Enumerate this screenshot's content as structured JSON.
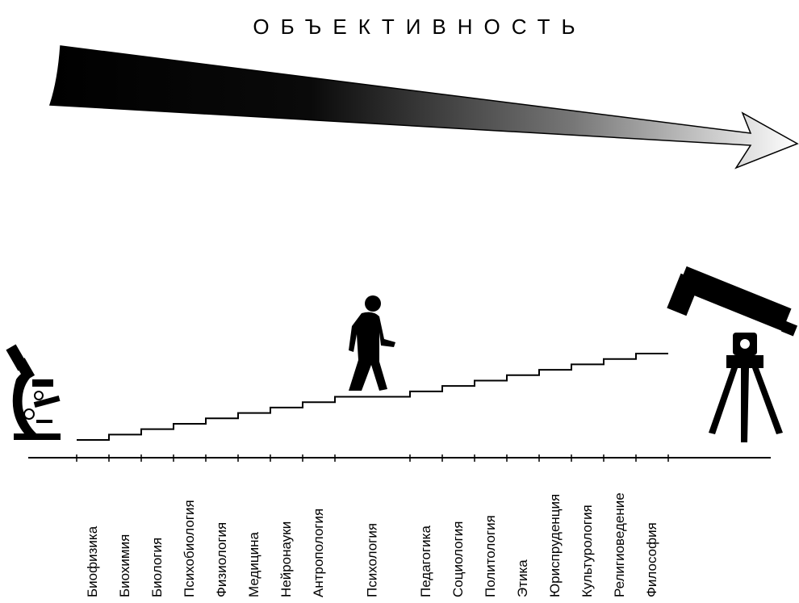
{
  "title": "ОБЪЕКТИВНОСТЬ",
  "disciplines": [
    "Биофизика",
    "Биохимия",
    "Биология",
    "Психобиология",
    "Физиология",
    "Медицина",
    "Нейронауки",
    "Антропология",
    "Психология",
    "Педагогика",
    "Социология",
    "Политология",
    "Этика",
    "Юриспруденция",
    "Культурология",
    "Религиоведение",
    "Философия"
  ]
}
